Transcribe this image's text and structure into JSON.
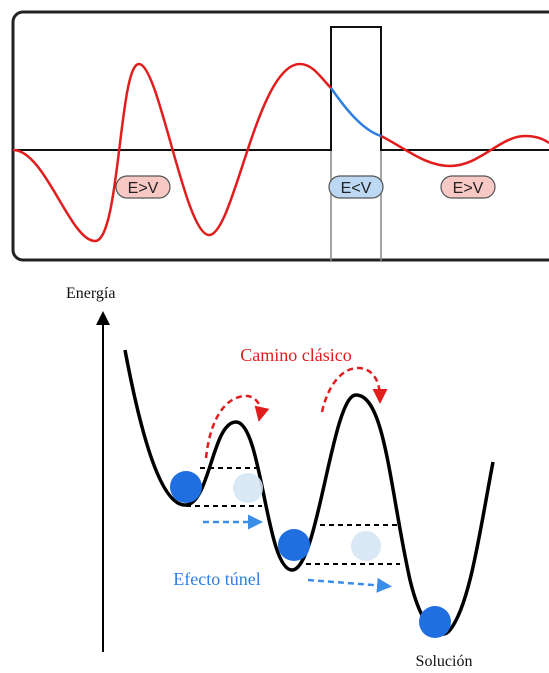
{
  "top_panel": {
    "regions": [
      {
        "label": "E>V",
        "kind": "classical"
      },
      {
        "label": "E<V",
        "kind": "barrier"
      },
      {
        "label": "E>V",
        "kind": "classical"
      }
    ]
  },
  "bottom_panel": {
    "y_axis_label": "Energía",
    "classical_path_label": "Camino clásico",
    "tunnel_label": "Efecto túnel",
    "solution_label": "Solución"
  },
  "colors": {
    "wave": "#e11d1d",
    "tunnel_wave": "#2f7fe0",
    "classical_arrow": "#e11d1d",
    "tunnel_text": "#2f7fe0",
    "tunnel_arrow": "#3b8ee8",
    "ball": "#1f6fe0",
    "ghost_ball": "#d6e4f3",
    "pill_red_fill": "#f8c9c4",
    "pill_blue_fill": "#bcd8f3",
    "pill_stroke": "#555555"
  },
  "icons": [
    "sine-wave-icon",
    "curved-arrow-icon",
    "dashed-arrow-icon",
    "ball-icon"
  ]
}
